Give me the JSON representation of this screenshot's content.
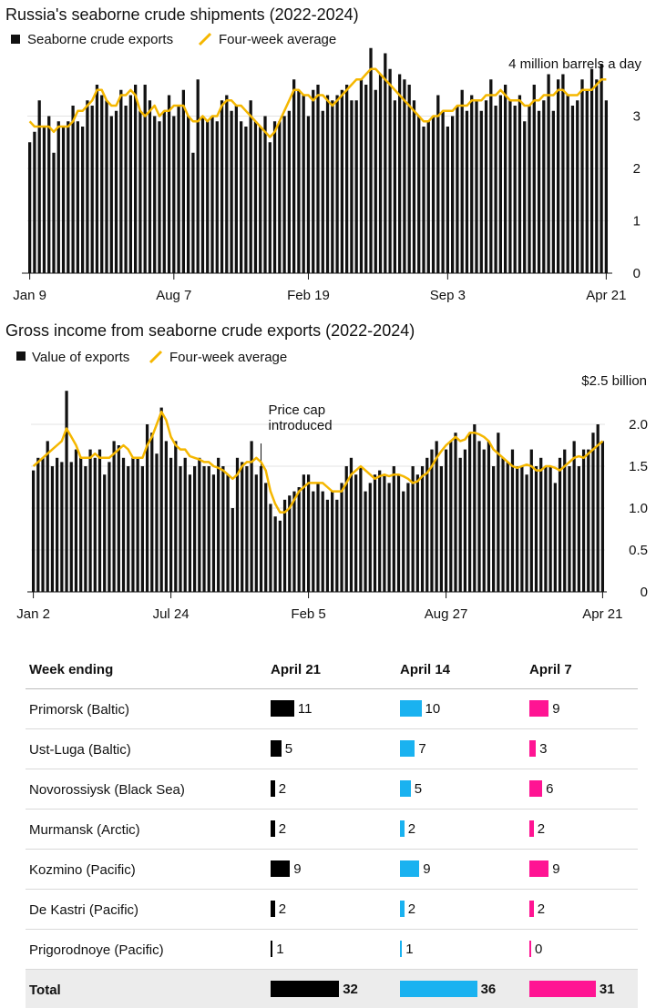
{
  "chart_data": [
    {
      "type": "bar",
      "title": "Russia's seaborne crude shipments (2022-2024)",
      "legend": [
        "Seaborne crude exports",
        "Four-week average"
      ],
      "unit_label": "4 million barrels a day",
      "ylim": [
        0,
        4
      ],
      "yticks": [
        "0",
        "1",
        "2",
        "3"
      ],
      "xtick_labels": [
        "Jan 9",
        "Aug 7",
        "Feb 19",
        "Sep 3",
        "Apr 21"
      ],
      "xtick_index": [
        0,
        30,
        58,
        87,
        120
      ],
      "values": [
        2.5,
        2.7,
        3.3,
        2.8,
        3.0,
        2.3,
        2.9,
        2.8,
        2.9,
        3.2,
        2.9,
        2.8,
        3.3,
        3.2,
        3.6,
        3.4,
        3.3,
        3.0,
        3.1,
        3.5,
        3.2,
        3.4,
        3.6,
        3.1,
        3.6,
        3.3,
        3.0,
        2.9,
        3.1,
        3.4,
        3.0,
        3.2,
        3.5,
        3.0,
        2.3,
        3.7,
        3.0,
        2.9,
        3.0,
        2.9,
        3.3,
        3.4,
        3.1,
        3.2,
        2.9,
        2.8,
        3.3,
        2.9,
        2.8,
        3.0,
        2.5,
        2.9,
        2.9,
        3.0,
        3.1,
        3.7,
        3.5,
        3.4,
        3.0,
        3.5,
        3.6,
        3.1,
        3.4,
        3.3,
        3.4,
        3.5,
        3.6,
        3.3,
        3.3,
        3.7,
        3.6,
        4.3,
        3.5,
        3.8,
        4.2,
        3.9,
        3.3,
        3.8,
        3.7,
        3.6,
        3.3,
        3.0,
        2.8,
        2.9,
        3.0,
        3.4,
        3.1,
        2.8,
        3.0,
        3.2,
        3.5,
        3.1,
        3.4,
        3.3,
        3.1,
        3.3,
        3.7,
        3.2,
        3.4,
        3.6,
        3.3,
        3.2,
        3.4,
        2.9,
        3.2,
        3.6,
        3.1,
        3.3,
        3.8,
        3.1,
        3.7,
        3.8,
        3.4,
        3.2,
        3.3,
        3.7,
        3.5,
        3.9,
        3.7,
        4.0,
        3.3
      ],
      "average": [
        2.9,
        2.8,
        2.8,
        2.8,
        2.8,
        2.7,
        2.8,
        2.8,
        2.8,
        2.9,
        3.1,
        3.1,
        3.2,
        3.3,
        3.5,
        3.5,
        3.3,
        3.2,
        3.2,
        3.4,
        3.4,
        3.5,
        3.4,
        3.1,
        3.0,
        3.1,
        3.2,
        3.0,
        3.1,
        3.1,
        3.2,
        3.2,
        3.2,
        3.0,
        2.9,
        2.9,
        3.0,
        2.9,
        3.0,
        3.0,
        3.2,
        3.3,
        3.3,
        3.2,
        3.2,
        3.1,
        3.0,
        2.9,
        2.8,
        2.7,
        2.6,
        2.7,
        2.9,
        3.1,
        3.3,
        3.5,
        3.5,
        3.4,
        3.4,
        3.3,
        3.4,
        3.4,
        3.3,
        3.2,
        3.3,
        3.4,
        3.5,
        3.6,
        3.7,
        3.7,
        3.8,
        3.9,
        3.9,
        3.8,
        3.7,
        3.6,
        3.5,
        3.4,
        3.3,
        3.2,
        3.1,
        3.0,
        2.9,
        2.9,
        3.0,
        3.0,
        3.1,
        3.1,
        3.1,
        3.2,
        3.2,
        3.2,
        3.3,
        3.3,
        3.3,
        3.4,
        3.4,
        3.4,
        3.5,
        3.4,
        3.3,
        3.3,
        3.3,
        3.2,
        3.2,
        3.3,
        3.3,
        3.4,
        3.4,
        3.4,
        3.5,
        3.5,
        3.4,
        3.4,
        3.4,
        3.5,
        3.5,
        3.5,
        3.6,
        3.7,
        3.7
      ]
    },
    {
      "type": "bar",
      "title": "Gross income from seaborne crude exports (2022-2024)",
      "legend": [
        "Value of exports",
        "Four-week average"
      ],
      "unit_label": "$2.5 billion",
      "ylim": [
        0,
        2.5
      ],
      "yticks": [
        "0",
        "0.5",
        "1.0",
        "1.5",
        "2.0"
      ],
      "xtick_labels": [
        "Jan 2",
        "Jul 24",
        "Feb 5",
        "Aug 27",
        "Apr 21"
      ],
      "xtick_index": [
        0,
        29,
        58,
        87,
        120
      ],
      "annotation": "Price cap introduced",
      "annotation_index": 48,
      "values": [
        1.45,
        1.6,
        1.6,
        1.8,
        1.5,
        1.6,
        1.55,
        2.4,
        1.55,
        1.7,
        1.6,
        1.5,
        1.7,
        1.6,
        1.7,
        1.4,
        1.55,
        1.8,
        1.75,
        1.6,
        1.5,
        1.6,
        1.6,
        1.5,
        2.0,
        1.9,
        1.65,
        2.2,
        1.8,
        1.6,
        1.8,
        1.5,
        1.6,
        1.4,
        1.5,
        1.6,
        1.5,
        1.5,
        1.4,
        1.6,
        1.5,
        1.4,
        1.0,
        1.6,
        1.55,
        1.5,
        1.8,
        1.4,
        1.5,
        1.3,
        1.05,
        0.9,
        0.85,
        1.1,
        1.15,
        1.2,
        1.25,
        1.4,
        1.4,
        1.2,
        1.3,
        1.2,
        1.1,
        1.2,
        1.1,
        1.3,
        1.5,
        1.6,
        1.4,
        1.5,
        1.2,
        1.3,
        1.4,
        1.45,
        1.4,
        1.3,
        1.5,
        1.4,
        1.2,
        1.3,
        1.5,
        1.4,
        1.5,
        1.6,
        1.7,
        1.8,
        1.5,
        1.7,
        1.8,
        1.9,
        1.6,
        1.7,
        1.9,
        2.0,
        1.8,
        1.7,
        1.8,
        1.5,
        1.9,
        1.6,
        1.55,
        1.7,
        1.5,
        1.5,
        1.4,
        1.7,
        1.5,
        1.6,
        1.5,
        1.5,
        1.3,
        1.6,
        1.7,
        1.5,
        1.8,
        1.5,
        1.7,
        1.7,
        1.9,
        2.0,
        1.8
      ],
      "average": [
        1.5,
        1.55,
        1.6,
        1.65,
        1.7,
        1.75,
        1.8,
        1.95,
        1.85,
        1.75,
        1.6,
        1.6,
        1.6,
        1.65,
        1.6,
        1.6,
        1.6,
        1.65,
        1.7,
        1.75,
        1.7,
        1.6,
        1.6,
        1.6,
        1.75,
        1.85,
        2.0,
        2.15,
        2.05,
        1.85,
        1.75,
        1.7,
        1.7,
        1.62,
        1.6,
        1.58,
        1.55,
        1.55,
        1.5,
        1.48,
        1.45,
        1.4,
        1.35,
        1.4,
        1.5,
        1.55,
        1.55,
        1.6,
        1.55,
        1.45,
        1.2,
        1.05,
        0.95,
        0.95,
        1.0,
        1.1,
        1.2,
        1.25,
        1.3,
        1.3,
        1.3,
        1.3,
        1.25,
        1.2,
        1.2,
        1.2,
        1.3,
        1.4,
        1.45,
        1.5,
        1.45,
        1.4,
        1.35,
        1.38,
        1.4,
        1.38,
        1.4,
        1.4,
        1.38,
        1.35,
        1.3,
        1.32,
        1.38,
        1.42,
        1.5,
        1.6,
        1.68,
        1.75,
        1.8,
        1.85,
        1.8,
        1.82,
        1.9,
        1.9,
        1.88,
        1.85,
        1.8,
        1.7,
        1.65,
        1.6,
        1.55,
        1.5,
        1.48,
        1.5,
        1.52,
        1.5,
        1.45,
        1.45,
        1.5,
        1.5,
        1.48,
        1.45,
        1.5,
        1.55,
        1.6,
        1.62,
        1.6,
        1.65,
        1.7,
        1.75,
        1.8
      ]
    }
  ],
  "colors": {
    "bar": "#111111",
    "average": "#f5b700",
    "april21": "#000000",
    "april14": "#1ab2f0",
    "april7": "#ff1493"
  },
  "table": {
    "header": {
      "label": "Week ending",
      "columns": [
        "April 21",
        "April 14",
        "April 7"
      ]
    },
    "rows": [
      {
        "label": "Primorsk (Baltic)",
        "values": [
          11,
          10,
          9
        ]
      },
      {
        "label": "Ust-Luga (Baltic)",
        "values": [
          5,
          7,
          3
        ]
      },
      {
        "label": "Novorossiysk (Black Sea)",
        "values": [
          2,
          5,
          6
        ]
      },
      {
        "label": "Murmansk (Arctic)",
        "values": [
          2,
          2,
          2
        ]
      },
      {
        "label": "Kozmino (Pacific)",
        "values": [
          9,
          9,
          9
        ]
      },
      {
        "label": "De Kastri (Pacific)",
        "values": [
          2,
          2,
          2
        ]
      },
      {
        "label": "Prigorodnoye (Pacific)",
        "values": [
          1,
          1,
          0
        ]
      }
    ],
    "total": {
      "label": "Total",
      "values": [
        32,
        36,
        31
      ]
    }
  }
}
